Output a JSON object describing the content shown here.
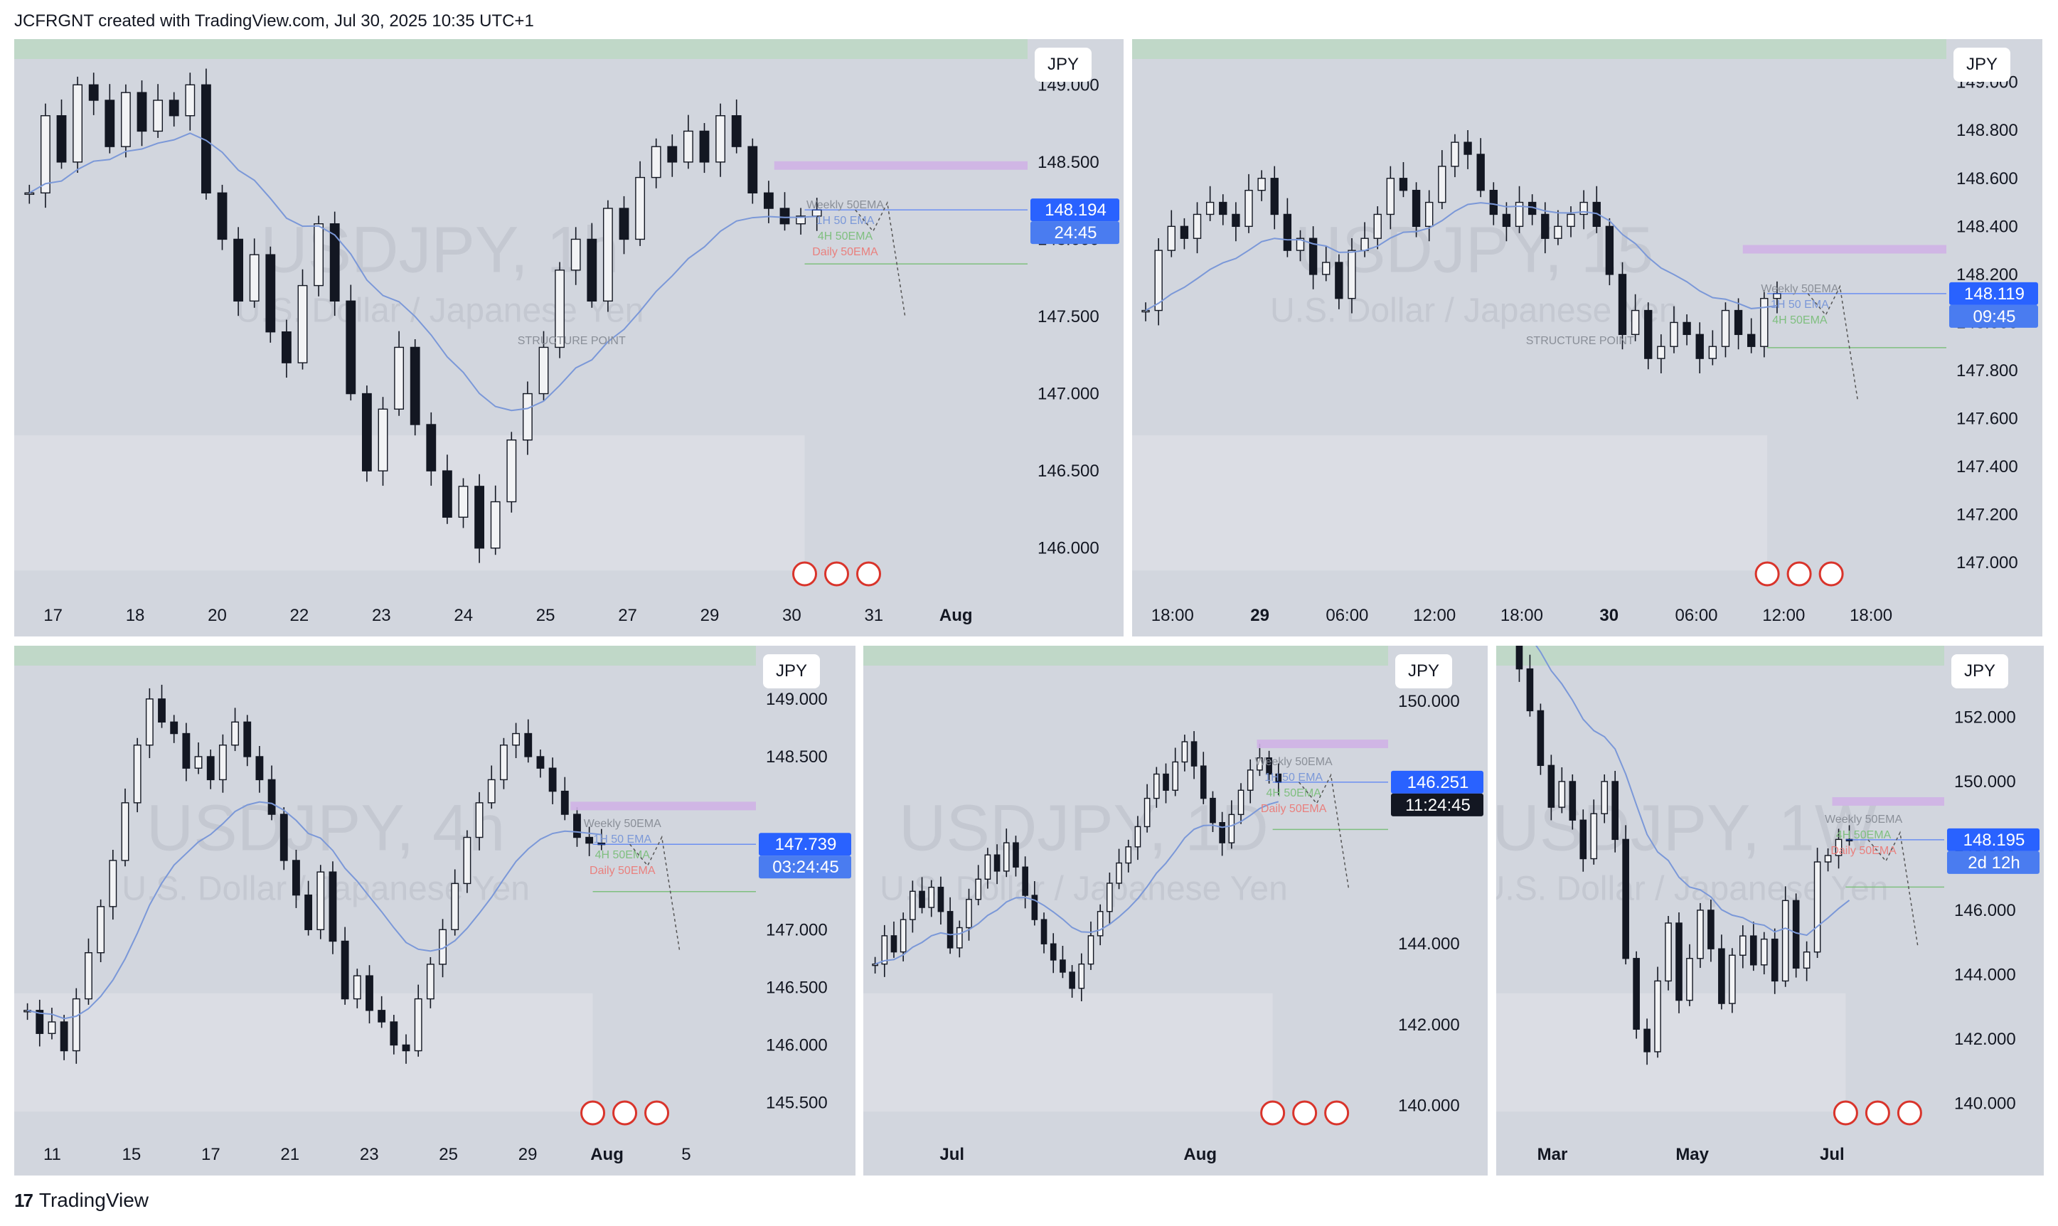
{
  "header": {
    "text": "JCFRGNT created with TradingView.com, Jul 30, 2025 10:35 UTC+1"
  },
  "footer": {
    "brand": "TradingView",
    "logo_glyph": "17"
  },
  "colors": {
    "panel_bg": "#d2d6de",
    "candle": "#131722",
    "ema_1h": "#7b98d8",
    "ema_4h": "#7fbf7f",
    "ema_daily": "#e9807e",
    "supply_zone": "#bcd8c2",
    "purple_zone": "#cfb3e6",
    "price_label": "#2962ff",
    "timer_label_dark": "#131722"
  },
  "chart_data": [
    {
      "id": "p1",
      "type": "candlestick",
      "currency": "JPY",
      "ticks_y": [
        "149.000",
        "148.500",
        "148.000",
        "147.500",
        "147.000",
        "146.500",
        "146.000"
      ],
      "ylim": [
        145.75,
        149.25
      ],
      "ticks_x": [
        "17",
        "18",
        "20",
        "22",
        "23",
        "24",
        "25",
        "27",
        "29",
        "30",
        "31",
        "Aug"
      ],
      "bold_x": [
        "Aug"
      ],
      "watermark_title": "USDJPY, 1h",
      "watermark_sub": "U.S. Dollar / Japanese Yen",
      "last_price": "148.194",
      "countdown": "24:45",
      "annotations": [
        "STRUCTURE POINT",
        "Weekly 50EMA",
        "1H 50 EMA",
        "4H 50EMA",
        "Daily 50EMA"
      ],
      "path": [
        148.3,
        148.8,
        148.5,
        149.0,
        148.9,
        148.6,
        148.95,
        148.7,
        148.9,
        148.8,
        149.0,
        148.3,
        148.0,
        147.6,
        147.9,
        147.4,
        147.2,
        147.7,
        148.1,
        147.6,
        147.0,
        146.5,
        146.9,
        147.3,
        146.8,
        146.5,
        146.2,
        146.4,
        146.0,
        146.3,
        146.7,
        147.0,
        147.3,
        147.8,
        148.0,
        147.6,
        148.2,
        148.0,
        148.4,
        148.6,
        148.5,
        148.7,
        148.5,
        148.8,
        148.6,
        148.3,
        148.2,
        148.1,
        148.15,
        148.19
      ]
    },
    {
      "id": "p2",
      "type": "candlestick",
      "currency": "JPY",
      "ticks_y": [
        "149.000",
        "148.800",
        "148.600",
        "148.400",
        "148.200",
        "148.000",
        "147.800",
        "147.600",
        "147.400",
        "147.200",
        "147.000"
      ],
      "ylim": [
        146.9,
        149.15
      ],
      "ticks_x": [
        "18:00",
        "29",
        "06:00",
        "12:00",
        "18:00",
        "30",
        "06:00",
        "12:00",
        "18:00"
      ],
      "bold_x": [
        "29",
        "30"
      ],
      "watermark_title": "USDJPY, 15",
      "watermark_sub": "U.S. Dollar / Japanese Yen",
      "last_price": "148.119",
      "countdown": "09:45",
      "annotations": [
        "STRUCTURE POINT",
        "Weekly 50EMA",
        "1H 50 EMA",
        "4H 50EMA"
      ],
      "path": [
        148.05,
        148.3,
        148.4,
        148.35,
        148.45,
        148.5,
        148.45,
        148.4,
        148.55,
        148.6,
        148.45,
        148.3,
        148.35,
        148.2,
        148.25,
        148.1,
        148.3,
        148.35,
        148.45,
        148.6,
        148.55,
        148.4,
        148.5,
        148.65,
        148.75,
        148.7,
        148.55,
        148.45,
        148.4,
        148.5,
        148.45,
        148.35,
        148.4,
        148.45,
        148.5,
        148.4,
        148.2,
        147.95,
        148.05,
        147.85,
        147.9,
        148.0,
        147.95,
        147.85,
        147.9,
        148.05,
        147.95,
        147.9,
        148.1,
        148.12
      ]
    },
    {
      "id": "p3",
      "type": "candlestick",
      "currency": "JPY",
      "ticks_y": [
        "149.000",
        "148.500",
        "147.500",
        "147.000",
        "146.500",
        "146.000",
        "145.500"
      ],
      "ylim": [
        145.3,
        149.4
      ],
      "ticks_x": [
        "11",
        "15",
        "17",
        "21",
        "23",
        "25",
        "29",
        "Aug",
        "5"
      ],
      "bold_x": [
        "Aug"
      ],
      "watermark_title": "USDJPY, 4h",
      "watermark_sub": "U.S. Dollar / Japanese Yen",
      "last_price": "147.739",
      "countdown": "03:24:45",
      "annotations": [
        "Weekly 50EMA",
        "1H 50 EMA",
        "4H 50EMA",
        "Daily 50EMA"
      ],
      "path": [
        146.3,
        146.1,
        146.2,
        145.95,
        146.4,
        146.8,
        147.2,
        147.6,
        148.1,
        148.6,
        149.0,
        148.8,
        148.7,
        148.4,
        148.5,
        148.3,
        148.6,
        148.8,
        148.5,
        148.3,
        148.0,
        147.6,
        147.3,
        147.0,
        147.5,
        146.9,
        146.4,
        146.6,
        146.3,
        146.2,
        146.0,
        145.95,
        146.4,
        146.7,
        147.0,
        147.4,
        147.8,
        148.1,
        148.3,
        148.6,
        148.7,
        148.5,
        148.4,
        148.2,
        148.0,
        147.8,
        147.75,
        147.74
      ]
    },
    {
      "id": "p4",
      "type": "candlestick",
      "currency": "JPY",
      "ticks_y": [
        "150.000",
        "144.000",
        "142.000",
        "140.000"
      ],
      "ylim": [
        139.5,
        151.2
      ],
      "ticks_x": [
        "Jul",
        "Aug"
      ],
      "bold_x": [
        "Jul",
        "Aug"
      ],
      "watermark_title": "USDJPY, 1D",
      "watermark_sub": "U.S. Dollar / Japanese Yen",
      "last_price": "146.251",
      "countdown": "11:24:45",
      "annotations": [
        "Weekly 50EMA",
        "1H 50 EMA",
        "4H 50EMA",
        "Daily 50EMA"
      ],
      "path": [
        143.5,
        144.2,
        143.8,
        144.6,
        145.3,
        144.9,
        145.4,
        144.8,
        143.9,
        144.4,
        145.1,
        145.6,
        146.2,
        145.8,
        146.5,
        145.9,
        145.2,
        144.6,
        144.0,
        143.6,
        143.3,
        142.9,
        143.5,
        144.2,
        144.8,
        145.5,
        146.0,
        146.4,
        146.9,
        147.6,
        148.2,
        147.8,
        148.5,
        149.0,
        148.4,
        147.6,
        147.0,
        146.5,
        147.2,
        147.8,
        148.3,
        148.6,
        148.2,
        148.0
      ]
    },
    {
      "id": "p5",
      "type": "candlestick",
      "currency": "JPY",
      "ticks_y": [
        "152.000",
        "150.000",
        "148.000",
        "146.000",
        "144.000",
        "142.000",
        "140.000"
      ],
      "ylim": [
        139.3,
        154.0
      ],
      "ticks_x": [
        "Mar",
        "May",
        "Jul"
      ],
      "bold_x": [
        "Mar",
        "May",
        "Jul"
      ],
      "watermark_title": "USDJPY, 1W",
      "watermark_sub": "U.S. Dollar / Japanese Yen",
      "last_price": "148.195",
      "countdown": "2d 12h",
      "annotations": [
        "Weekly 50EMA",
        "4H 50EMA",
        "Daily 50EMA"
      ],
      "path": [
        155.0,
        153.5,
        152.2,
        150.5,
        149.2,
        150.0,
        148.8,
        147.6,
        149.0,
        150.0,
        148.2,
        144.5,
        142.3,
        141.6,
        143.8,
        145.6,
        143.2,
        144.5,
        146.0,
        144.8,
        143.1,
        144.6,
        145.2,
        144.3,
        145.1,
        143.8,
        146.3,
        144.2,
        144.7,
        147.5,
        147.7,
        148.2,
        148.19
      ]
    }
  ]
}
